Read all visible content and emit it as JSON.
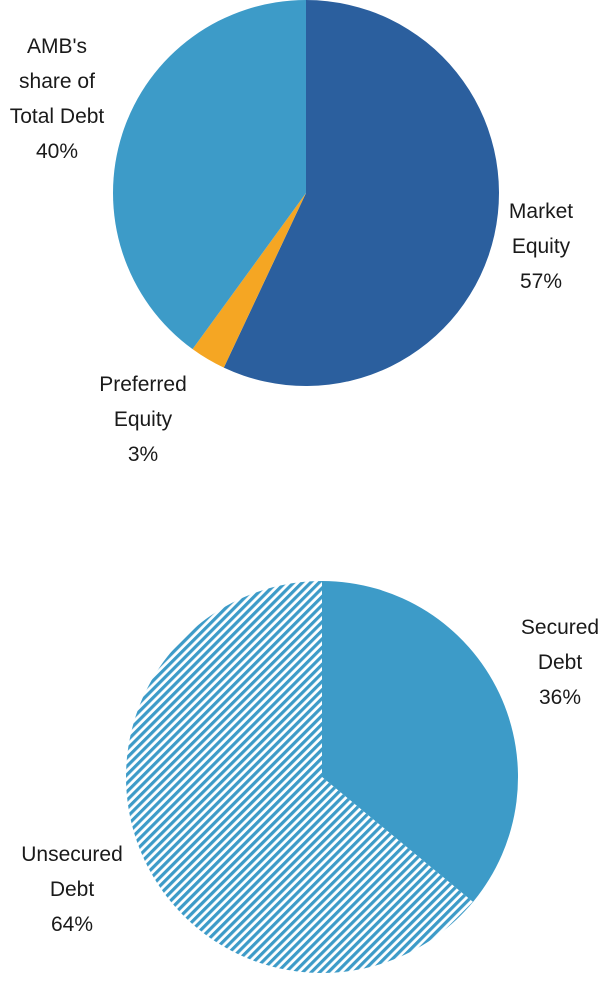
{
  "chart_data": [
    {
      "type": "pie",
      "slices": [
        {
          "label": [
            "Market",
            "Equity"
          ],
          "value": 57,
          "value_label": "57%",
          "color": "#2b5f9e",
          "fill": "solid"
        },
        {
          "label": [
            "Preferred",
            "Equity"
          ],
          "value": 3,
          "value_label": "3%",
          "color": "#f5a623",
          "fill": "solid"
        },
        {
          "label": [
            "AMB's",
            "share of",
            "Total Debt"
          ],
          "value": 40,
          "value_label": "40%",
          "color": "#3d9bc8",
          "fill": "solid"
        }
      ],
      "start": "12 o'clock",
      "direction": "clockwise"
    },
    {
      "type": "pie",
      "slices": [
        {
          "label": [
            "Secured",
            "Debt"
          ],
          "value": 36,
          "value_label": "36%",
          "color": "#3d9bc8",
          "fill": "solid"
        },
        {
          "label": [
            "Unsecured",
            "Debt"
          ],
          "value": 64,
          "value_label": "64%",
          "color": "#3d9bc8",
          "fill": "hatched"
        }
      ],
      "start": "12 o'clock",
      "direction": "clockwise"
    }
  ]
}
